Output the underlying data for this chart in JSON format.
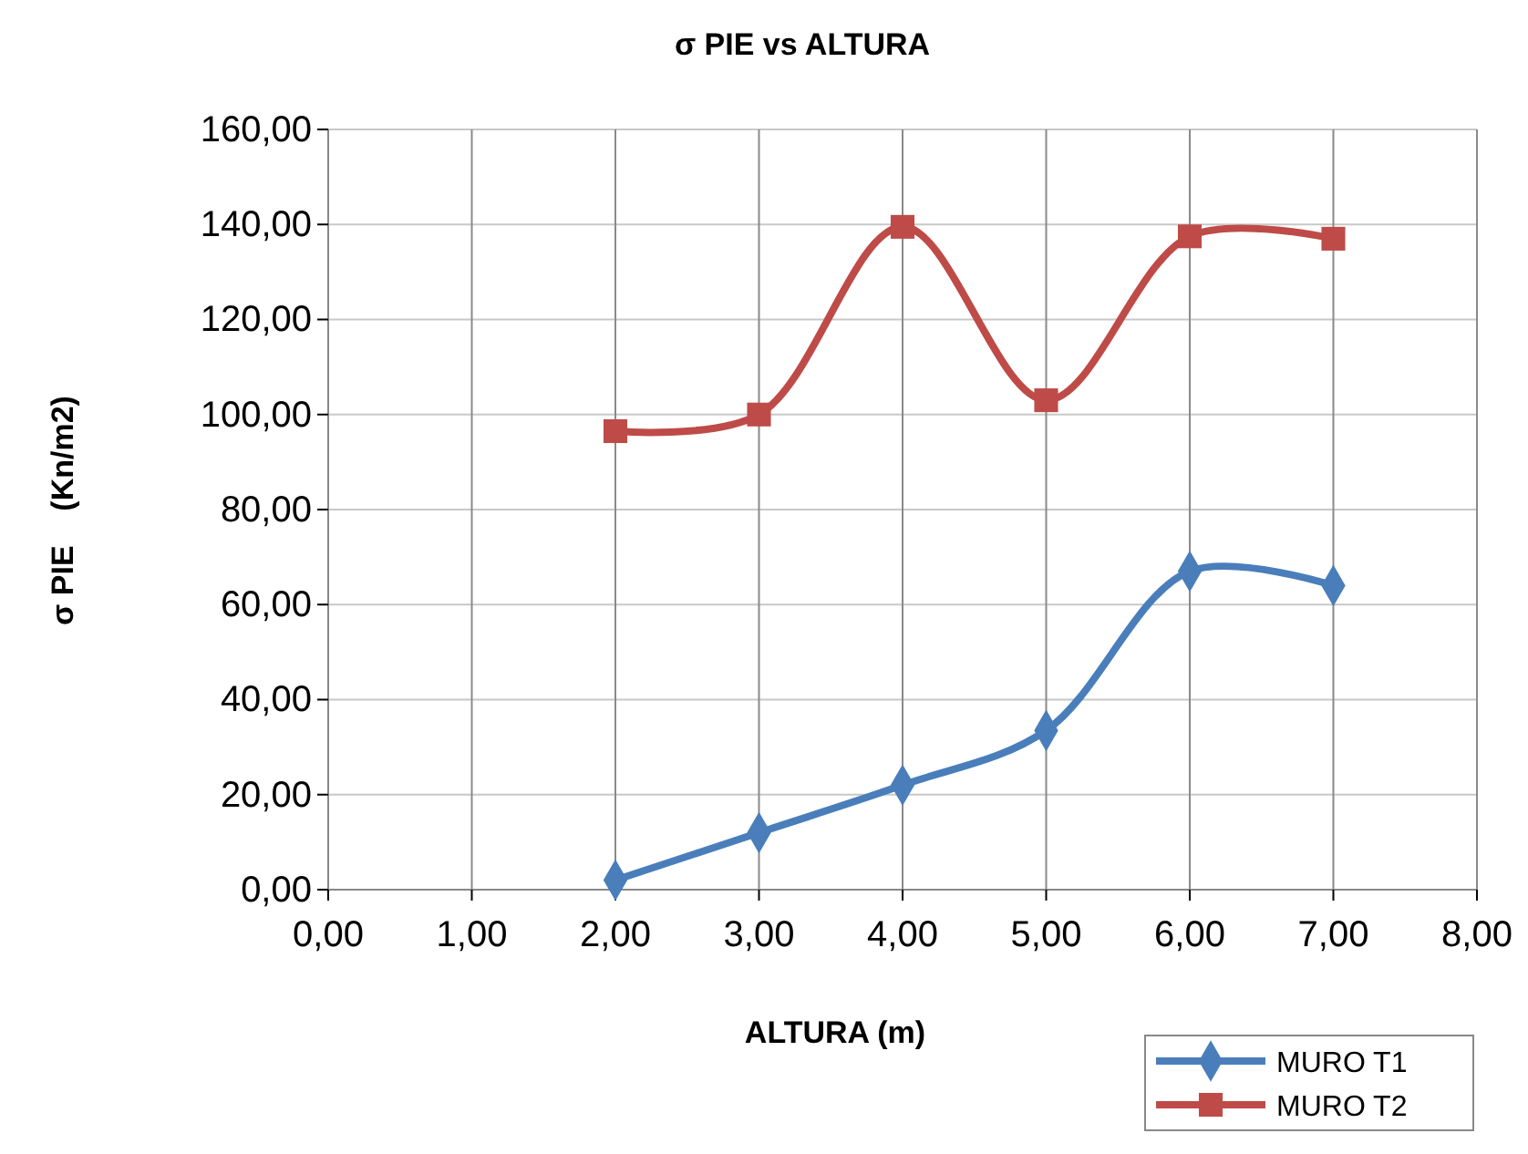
{
  "chart_data": {
    "type": "line",
    "title": "σ PIE vs ALTURA",
    "xlabel": "ALTURA (m)",
    "ylabel": "σ PIE    (Kn/m2)",
    "x": [
      2,
      3,
      4,
      5,
      6,
      7
    ],
    "series": [
      {
        "name": "MURO T1",
        "color": "#4a7ebb",
        "marker": "diamond",
        "values": [
          2,
          12,
          22,
          33.5,
          67,
          64
        ]
      },
      {
        "name": "MURO T2",
        "color": "#be4b48",
        "marker": "square",
        "values": [
          96.5,
          100,
          139.5,
          103,
          137.5,
          137
        ]
      }
    ],
    "xlim": [
      0,
      8
    ],
    "xticks": [
      {
        "value": 0,
        "label": "0,00"
      },
      {
        "value": 1,
        "label": "1,00"
      },
      {
        "value": 2,
        "label": "2,00"
      },
      {
        "value": 3,
        "label": "3,00"
      },
      {
        "value": 4,
        "label": "4,00"
      },
      {
        "value": 5,
        "label": "5,00"
      },
      {
        "value": 6,
        "label": "6,00"
      },
      {
        "value": 7,
        "label": "7,00"
      },
      {
        "value": 8,
        "label": "8,00"
      }
    ],
    "ylim": [
      0,
      160
    ],
    "yticks": [
      {
        "value": 0,
        "label": "0,00"
      },
      {
        "value": 20,
        "label": "20,00"
      },
      {
        "value": 40,
        "label": "40,00"
      },
      {
        "value": 60,
        "label": "60,00"
      },
      {
        "value": 80,
        "label": "80,00"
      },
      {
        "value": 100,
        "label": "100,00"
      },
      {
        "value": 120,
        "label": "120,00"
      },
      {
        "value": 140,
        "label": "140,00"
      },
      {
        "value": 160,
        "label": "160,00"
      }
    ],
    "grid": true,
    "legend": "bottom right",
    "line_style": "solid"
  }
}
